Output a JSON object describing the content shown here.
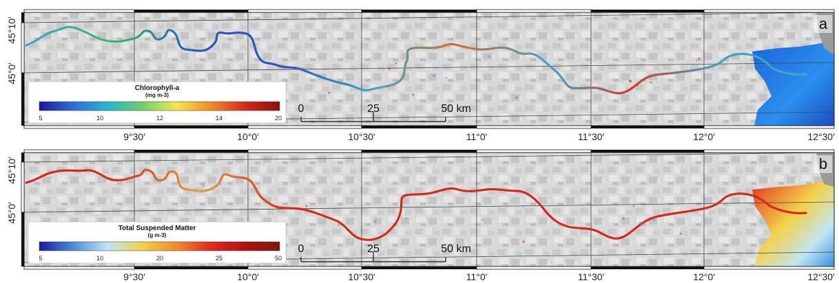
{
  "panels": [
    {
      "letter": "a",
      "legend": {
        "title": "Chlorophyll-a",
        "unit": "(mg m-3)",
        "ticks": [
          "5",
          "10",
          "12",
          "14",
          "20"
        ],
        "colors": [
          "#1a1a9e",
          "#2f6fd8",
          "#2bb5c8",
          "#6fcf6a",
          "#f1e84a",
          "#f08a2a",
          "#d42a1e",
          "#8b0f0f"
        ]
      },
      "scalebar": {
        "ticks": [
          "0",
          "25",
          "50 km"
        ]
      },
      "river_color_sequence": [
        "#3fa6c2",
        "#3ab86a",
        "#2b55c4",
        "#2b55c4",
        "#3fa6c2",
        "#d36a2a",
        "#3fa6c2",
        "#d33a2a",
        "#3fa6c2",
        "#3fa6c2"
      ]
    },
    {
      "letter": "b",
      "legend": {
        "title": "Total Suspended Matter",
        "unit": "(g m-3)",
        "ticks": [
          "5",
          "10",
          "20",
          "25",
          "50"
        ],
        "colors": [
          "#1a1a9e",
          "#4f8ed8",
          "#bfe6f2",
          "#f3d24a",
          "#f08a2a",
          "#e02a1e",
          "#b0120e",
          "#7a1a0a"
        ]
      },
      "scalebar": {
        "ticks": [
          "0",
          "25",
          "50 km"
        ]
      },
      "river_color_sequence": [
        "#d42a1e",
        "#d42a1e",
        "#e0a040",
        "#d42a1e",
        "#d42a1e",
        "#d42a1e",
        "#d42a1e",
        "#d42a1e",
        "#d42a1e",
        "#d42a1e"
      ]
    }
  ],
  "axes": {
    "lon_ticks": [
      "9°30′",
      "10°0′",
      "10°30′",
      "11°0′",
      "11°30′",
      "12°0′",
      "12°30′"
    ],
    "lat_ticks": [
      "45°10′",
      "45°0′"
    ]
  }
}
